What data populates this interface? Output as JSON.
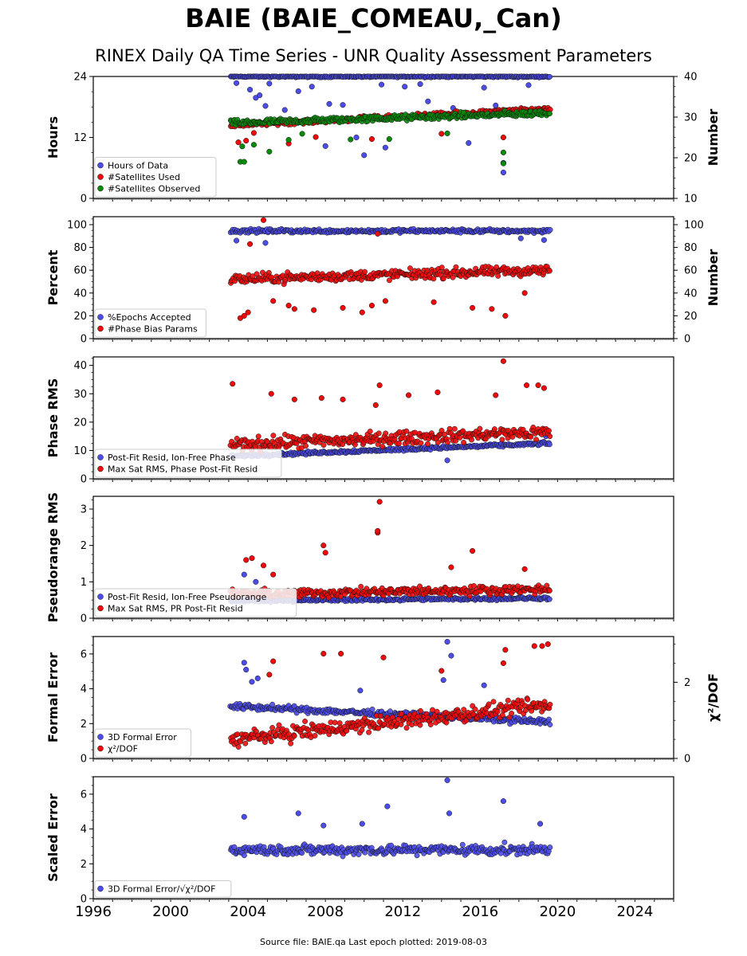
{
  "title": "BAIE (BAIE_COMEAU,_Can)",
  "subtitle": "RINEX Daily QA Time Series - UNR Quality Assessment Parameters",
  "footer": "Source file: BAIE.qa Last epoch plotted: 2019-08-03",
  "colors": {
    "blue": "#4c4ce8",
    "red": "#ee0a0a",
    "green": "#0a8a0a",
    "frame": "#000000"
  },
  "chart_data": [
    {
      "type": "scatter",
      "id": "hours",
      "ylabel": "Hours",
      "ylabel_right": "Number",
      "xlim": [
        1996,
        2026
      ],
      "ylim": [
        0,
        24
      ],
      "ylim_right": [
        10,
        40
      ],
      "yticks": [
        0,
        12,
        24
      ],
      "yticks_right": [
        10,
        20,
        30,
        40
      ],
      "legend": [
        "Hours of Data",
        "#Satellites Used",
        "#Satellites Observed"
      ],
      "legend_position": "lower-left",
      "series": [
        {
          "name": "Hours of Data",
          "color": "blue",
          "axis": "left",
          "x_range": [
            2003.1,
            2019.6
          ],
          "base": 24.0,
          "spread": 0.25,
          "outliers": [
            [
              2003.4,
              22.7
            ],
            [
              2004.1,
              21.4
            ],
            [
              2004.4,
              19.8
            ],
            [
              2004.6,
              20.3
            ],
            [
              2004.9,
              18.2
            ],
            [
              2005.1,
              22.6
            ],
            [
              2005.9,
              17.4
            ],
            [
              2006.6,
              21.1
            ],
            [
              2007.3,
              22.0
            ],
            [
              2008.0,
              10.3
            ],
            [
              2008.2,
              18.6
            ],
            [
              2008.9,
              18.4
            ],
            [
              2009.6,
              12.0
            ],
            [
              2010.0,
              8.5
            ],
            [
              2010.9,
              22.4
            ],
            [
              2011.1,
              10.0
            ],
            [
              2012.1,
              22.0
            ],
            [
              2012.9,
              22.5
            ],
            [
              2013.3,
              19.1
            ],
            [
              2014.6,
              17.8
            ],
            [
              2015.4,
              10.9
            ],
            [
              2016.2,
              21.8
            ],
            [
              2016.8,
              18.3
            ],
            [
              2017.2,
              5.1
            ],
            [
              2017.2,
              7.0
            ],
            [
              2018.5,
              22.3
            ]
          ]
        },
        {
          "name": "#Satellites Used",
          "color": "red",
          "axis": "right",
          "x_range": [
            2003.1,
            2019.6
          ],
          "base_start": 28.0,
          "base_end": 32.0,
          "spread": 0.8,
          "outliers": [
            [
              2003.5,
              23.8
            ],
            [
              2003.9,
              24.2
            ],
            [
              2004.3,
              26.1
            ],
            [
              2006.1,
              23.5
            ],
            [
              2007.5,
              25.1
            ],
            [
              2010.4,
              24.6
            ],
            [
              2014.0,
              25.9
            ],
            [
              2017.2,
              25.0
            ]
          ]
        },
        {
          "name": "#Satellites Observed",
          "color": "green",
          "axis": "right",
          "x_range": [
            2003.1,
            2019.6
          ],
          "base_start": 28.5,
          "base_end": 31.0,
          "spread": 1.1,
          "outliers": [
            [
              2003.6,
              19.0
            ],
            [
              2003.8,
              19.0
            ],
            [
              2003.7,
              22.8
            ],
            [
              2004.3,
              23.2
            ],
            [
              2005.1,
              21.5
            ],
            [
              2006.1,
              24.4
            ],
            [
              2006.8,
              25.9
            ],
            [
              2009.3,
              24.5
            ],
            [
              2011.3,
              24.6
            ],
            [
              2014.3,
              26.0
            ],
            [
              2017.2,
              18.6
            ],
            [
              2017.2,
              21.3
            ]
          ]
        }
      ]
    },
    {
      "type": "scatter",
      "id": "percent",
      "ylabel": "Percent",
      "ylabel_right": "Number",
      "xlim": [
        1996,
        2026
      ],
      "ylim": [
        0,
        107
      ],
      "ylim_right": [
        0,
        107
      ],
      "yticks": [
        0,
        20,
        40,
        60,
        80,
        100
      ],
      "yticks_right": [
        0,
        20,
        40,
        60,
        80,
        100
      ],
      "legend": [
        "%Epochs Accepted",
        "#Phase Bias Params"
      ],
      "legend_position": "lower-left",
      "series": [
        {
          "name": "%Epochs Accepted",
          "color": "blue",
          "axis": "left",
          "x_range": [
            2003.1,
            2019.6
          ],
          "base": 94.5,
          "spread": 2.5,
          "outliers": [
            [
              2003.4,
              86.0
            ],
            [
              2004.9,
              84.0
            ],
            [
              2019.3,
              86.5
            ],
            [
              2018.1,
              88.0
            ]
          ]
        },
        {
          "name": "#Phase Bias Params",
          "color": "red",
          "axis": "right",
          "x_range": [
            2003.1,
            2019.6
          ],
          "base_start": 52.0,
          "base_end": 60.0,
          "spread": 6.5,
          "outliers": [
            [
              2003.6,
              18.0
            ],
            [
              2003.8,
              20.0
            ],
            [
              2004.0,
              23.0
            ],
            [
              2004.8,
              104.0
            ],
            [
              2004.1,
              83.0
            ],
            [
              2005.3,
              33.0
            ],
            [
              2006.1,
              29.0
            ],
            [
              2006.4,
              26.0
            ],
            [
              2007.4,
              25.0
            ],
            [
              2008.9,
              27.0
            ],
            [
              2009.9,
              23.0
            ],
            [
              2010.4,
              29.0
            ],
            [
              2010.7,
              92.0
            ],
            [
              2011.1,
              33.0
            ],
            [
              2013.6,
              32.0
            ],
            [
              2015.6,
              27.0
            ],
            [
              2016.6,
              26.0
            ],
            [
              2017.3,
              20.0
            ],
            [
              2018.3,
              40.0
            ]
          ]
        }
      ]
    },
    {
      "type": "scatter",
      "id": "phase",
      "ylabel": "Phase RMS",
      "xlim": [
        1996,
        2026
      ],
      "ylim": [
        0,
        43
      ],
      "yticks": [
        0,
        10,
        20,
        30,
        40
      ],
      "legend": [
        "Post-Fit Resid, Ion-Free Phase",
        "Max Sat RMS, Phase Post-Fit Resid"
      ],
      "legend_position": "lower-left",
      "series": [
        {
          "name": "Post-Fit Resid, Ion-Free Phase",
          "color": "blue",
          "axis": "left",
          "x_range": [
            2003.1,
            2019.6
          ],
          "base_start": 8.0,
          "base_end": 12.5,
          "spread": 0.8,
          "outliers": [
            [
              2014.3,
              6.5
            ],
            [
              2019.4,
              15.0
            ]
          ]
        },
        {
          "name": "Max Sat RMS, Phase Post-Fit Resid",
          "color": "red",
          "axis": "left",
          "x_range": [
            2003.1,
            2019.6
          ],
          "base_start": 12.0,
          "base_end": 16.5,
          "spread": 3.5,
          "outliers": [
            [
              2003.2,
              33.5
            ],
            [
              2005.2,
              30.0
            ],
            [
              2006.4,
              28.0
            ],
            [
              2007.8,
              28.5
            ],
            [
              2008.9,
              28.0
            ],
            [
              2010.6,
              26.0
            ],
            [
              2010.8,
              33.0
            ],
            [
              2012.3,
              29.5
            ],
            [
              2013.8,
              30.5
            ],
            [
              2016.8,
              29.5
            ],
            [
              2017.2,
              41.5
            ],
            [
              2018.4,
              33.0
            ],
            [
              2019.0,
              33.0
            ],
            [
              2019.3,
              32.0
            ]
          ]
        }
      ]
    },
    {
      "type": "scatter",
      "id": "pseudorange",
      "ylabel": "Pseudorange RMS",
      "xlim": [
        1996,
        2026
      ],
      "ylim": [
        0,
        3.35
      ],
      "yticks": [
        0,
        1,
        2,
        3
      ],
      "legend": [
        "Post-Fit Resid, Ion-Free Pseudorange",
        "Max Sat RMS, PR Post-Fit Resid"
      ],
      "legend_position": "lower-left",
      "series": [
        {
          "name": "Post-Fit Resid, Ion-Free Pseudorange",
          "color": "blue",
          "axis": "left",
          "x_range": [
            2003.1,
            2019.6
          ],
          "base_start": 0.48,
          "base_end": 0.55,
          "spread": 0.06,
          "outliers": [
            [
              2003.8,
              1.2
            ],
            [
              2004.4,
              1.0
            ]
          ]
        },
        {
          "name": "Max Sat RMS, PR Post-Fit Resid",
          "color": "red",
          "axis": "left",
          "x_range": [
            2003.1,
            2019.6
          ],
          "base_start": 0.65,
          "base_end": 0.8,
          "spread": 0.18,
          "outliers": [
            [
              2003.9,
              1.6
            ],
            [
              2004.2,
              1.65
            ],
            [
              2004.8,
              1.45
            ],
            [
              2005.3,
              1.2
            ],
            [
              2007.9,
              2.0
            ],
            [
              2008.0,
              1.8
            ],
            [
              2010.7,
              2.35
            ],
            [
              2010.7,
              2.4
            ],
            [
              2010.8,
              3.2
            ],
            [
              2015.6,
              1.85
            ],
            [
              2014.5,
              1.4
            ],
            [
              2018.3,
              1.35
            ]
          ]
        }
      ]
    },
    {
      "type": "scatter",
      "id": "formal",
      "ylabel": "Formal Error",
      "ylabel_right": "χ²/DOF",
      "xlim": [
        1996,
        2026
      ],
      "ylim": [
        0,
        7
      ],
      "ylim_right": [
        0,
        3.2
      ],
      "yticks": [
        0,
        2,
        4,
        6
      ],
      "yticks_right": [
        0,
        2
      ],
      "legend": [
        "3D Formal Error",
        "χ²/DOF"
      ],
      "legend_position": "lower-left",
      "series": [
        {
          "name": "3D Formal Error",
          "color": "blue",
          "axis": "left",
          "x_range": [
            2003.1,
            2019.6
          ],
          "base_start": 3.0,
          "base_end": 2.1,
          "spread": 0.25,
          "outliers": [
            [
              2003.8,
              5.5
            ],
            [
              2003.9,
              5.1
            ],
            [
              2004.2,
              4.4
            ],
            [
              2004.5,
              4.6
            ],
            [
              2009.8,
              3.9
            ],
            [
              2014.3,
              6.7
            ],
            [
              2014.5,
              5.9
            ],
            [
              2014.1,
              4.5
            ],
            [
              2016.2,
              4.2
            ]
          ]
        },
        {
          "name": "χ²/DOF",
          "color": "red",
          "axis": "right",
          "x_range": [
            2003.1,
            2019.6
          ],
          "base_start": 0.5,
          "base_end": 1.4,
          "spread": 0.3,
          "outliers": [
            [
              2005.1,
              2.2
            ],
            [
              2005.3,
              2.55
            ],
            [
              2007.9,
              2.75
            ],
            [
              2008.8,
              2.75
            ],
            [
              2011.0,
              2.65
            ],
            [
              2014.0,
              2.3
            ],
            [
              2017.2,
              2.5
            ],
            [
              2017.3,
              2.85
            ],
            [
              2018.8,
              2.95
            ],
            [
              2019.2,
              2.95
            ],
            [
              2019.5,
              3.0
            ]
          ]
        }
      ]
    },
    {
      "type": "scatter",
      "id": "scaled",
      "ylabel": "Scaled Error",
      "xlim": [
        1996,
        2026
      ],
      "ylim": [
        0,
        7
      ],
      "yticks": [
        0,
        2,
        4,
        6
      ],
      "xticks": [
        1996,
        2000,
        2004,
        2008,
        2012,
        2016,
        2020,
        2024
      ],
      "legend": [
        "3D Formal Error/√χ²/DOF"
      ],
      "legend_position": "lower-left",
      "series": [
        {
          "name": "3D Formal Error/√χ²/DOF",
          "color": "blue",
          "axis": "left",
          "x_range": [
            2003.1,
            2019.6
          ],
          "base": 2.8,
          "spread": 0.45,
          "outliers": [
            [
              2003.8,
              4.7
            ],
            [
              2006.6,
              4.9
            ],
            [
              2007.9,
              4.2
            ],
            [
              2009.9,
              4.3
            ],
            [
              2011.2,
              5.3
            ],
            [
              2014.3,
              6.8
            ],
            [
              2014.4,
              4.9
            ],
            [
              2017.2,
              5.6
            ],
            [
              2019.1,
              4.3
            ]
          ]
        }
      ]
    }
  ]
}
